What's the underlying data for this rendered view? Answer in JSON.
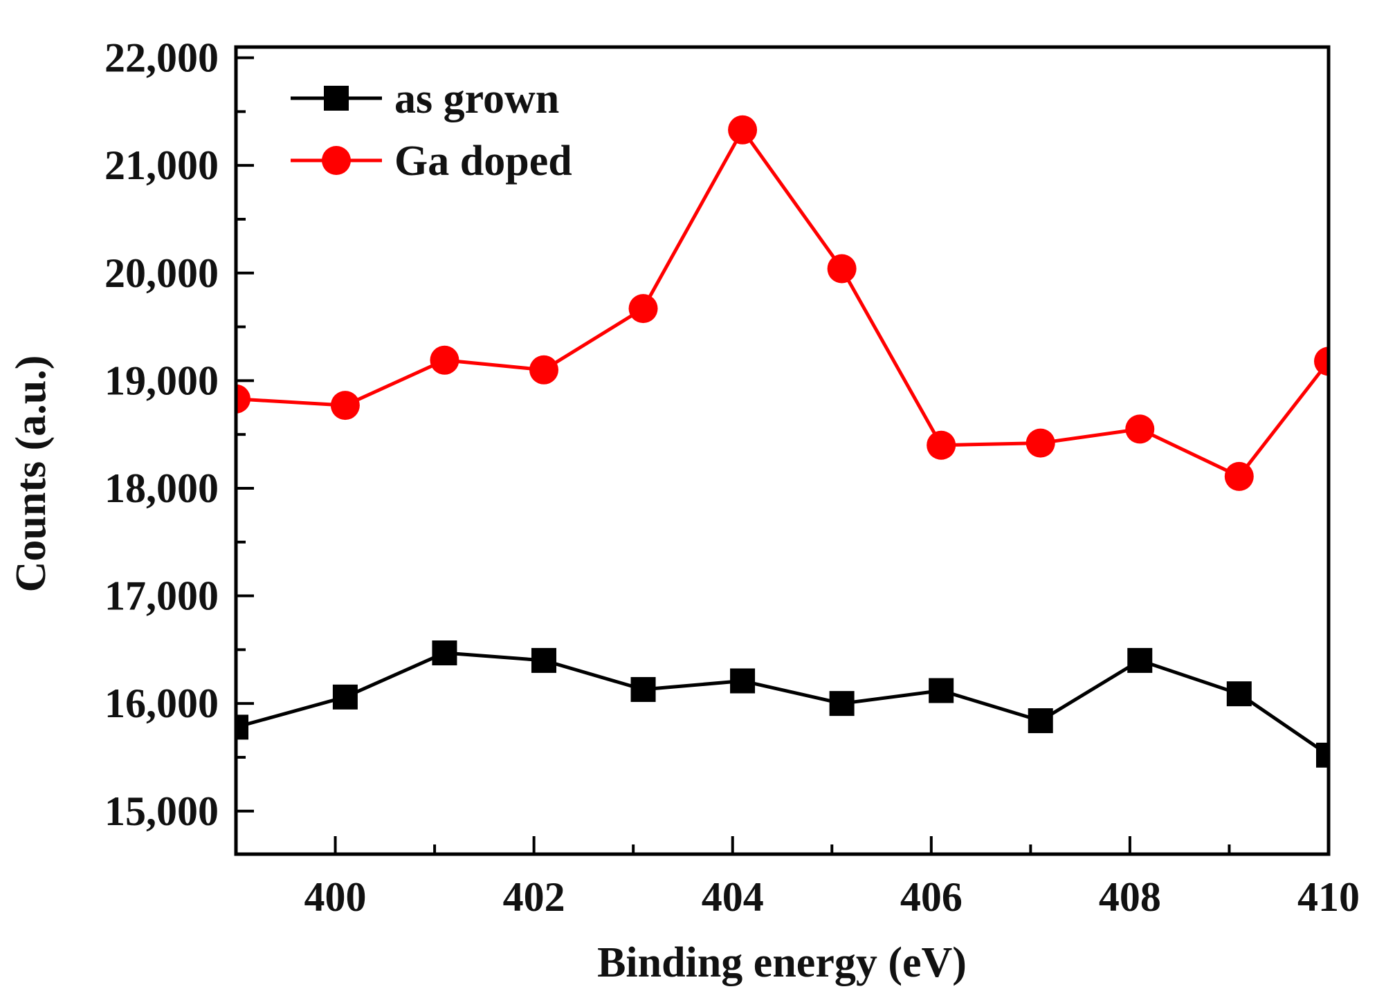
{
  "chart_data": {
    "type": "line",
    "title": "",
    "xlabel": "Binding energy (eV)",
    "ylabel": "Counts (a.u.)",
    "xlim": [
      399,
      410
    ],
    "ylim": [
      14600,
      22100
    ],
    "xticks": [
      400,
      402,
      404,
      406,
      408,
      410
    ],
    "xtick_labels": [
      "400",
      "402",
      "404",
      "406",
      "408",
      "410"
    ],
    "yticks": [
      15000,
      16000,
      17000,
      18000,
      19000,
      20000,
      21000,
      22000
    ],
    "ytick_labels": [
      "15,000",
      "16,000",
      "17,000",
      "18,000",
      "19,000",
      "20,000",
      "21,000",
      "22,000"
    ],
    "legend_position": "top-left",
    "x": [
      399.0,
      400.1,
      401.1,
      402.1,
      403.1,
      404.1,
      405.1,
      406.1,
      407.1,
      408.1,
      409.1,
      410.0
    ],
    "series": [
      {
        "name": "as grown",
        "color": "#000000",
        "marker": "square",
        "values": [
          15780,
          16060,
          16470,
          16400,
          16130,
          16210,
          16000,
          16120,
          15840,
          16400,
          16090,
          15520
        ]
      },
      {
        "name": "Ga doped",
        "color": "#ff0000",
        "marker": "circle",
        "values": [
          18830,
          18770,
          19190,
          19100,
          19670,
          21330,
          20040,
          18400,
          18420,
          18550,
          18110,
          19180
        ]
      }
    ]
  }
}
